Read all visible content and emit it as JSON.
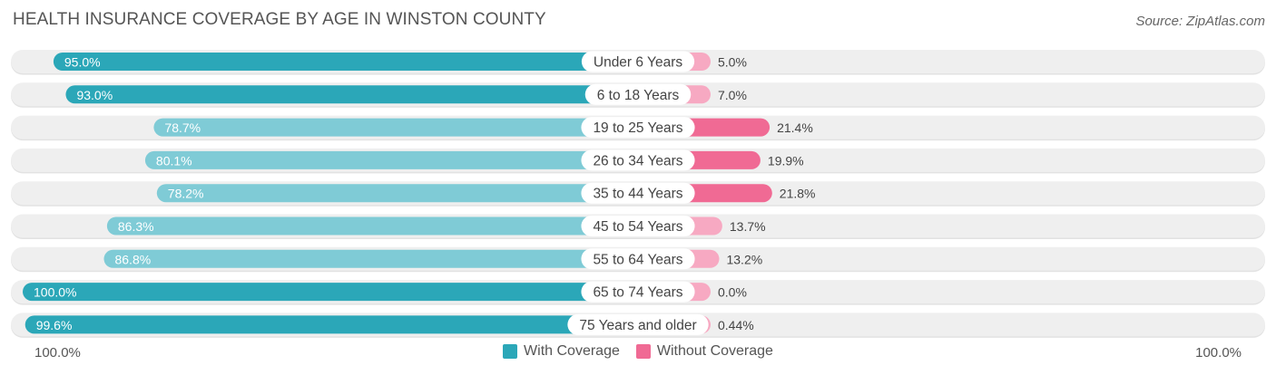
{
  "title": "HEALTH INSURANCE COVERAGE BY AGE IN WINSTON COUNTY",
  "source": "Source: ZipAtlas.com",
  "legend": {
    "with_label": "With Coverage",
    "without_label": "Without Coverage"
  },
  "axis": {
    "left_label": "100.0%",
    "right_label": "100.0%"
  },
  "colors": {
    "with_dark": "#2ba7b8",
    "with_light": "#7fcbd6",
    "without_dark": "#f06a94",
    "without_light": "#f7a9c2",
    "track": "#efefef"
  },
  "chart_data": {
    "type": "bar",
    "orientation": "diverging-horizontal",
    "title": "HEALTH INSURANCE COVERAGE BY AGE IN WINSTON COUNTY",
    "categories": [
      "Under 6 Years",
      "6 to 18 Years",
      "19 to 25 Years",
      "26 to 34 Years",
      "35 to 44 Years",
      "45 to 54 Years",
      "55 to 64 Years",
      "65 to 74 Years",
      "75 Years and older"
    ],
    "series": [
      {
        "name": "With Coverage",
        "values": [
          95.0,
          93.0,
          78.7,
          80.1,
          78.2,
          86.3,
          86.8,
          100.0,
          99.6
        ],
        "labels": [
          "95.0%",
          "93.0%",
          "78.7%",
          "80.1%",
          "78.2%",
          "86.3%",
          "86.8%",
          "100.0%",
          "99.6%"
        ]
      },
      {
        "name": "Without Coverage",
        "values": [
          5.0,
          7.0,
          21.4,
          19.9,
          21.8,
          13.7,
          13.2,
          0.0,
          0.44
        ],
        "labels": [
          "5.0%",
          "7.0%",
          "21.4%",
          "19.9%",
          "21.8%",
          "13.7%",
          "13.2%",
          "0.0%",
          "0.44%"
        ]
      }
    ],
    "xlim": [
      0,
      100
    ],
    "legend_position": "bottom-center"
  }
}
